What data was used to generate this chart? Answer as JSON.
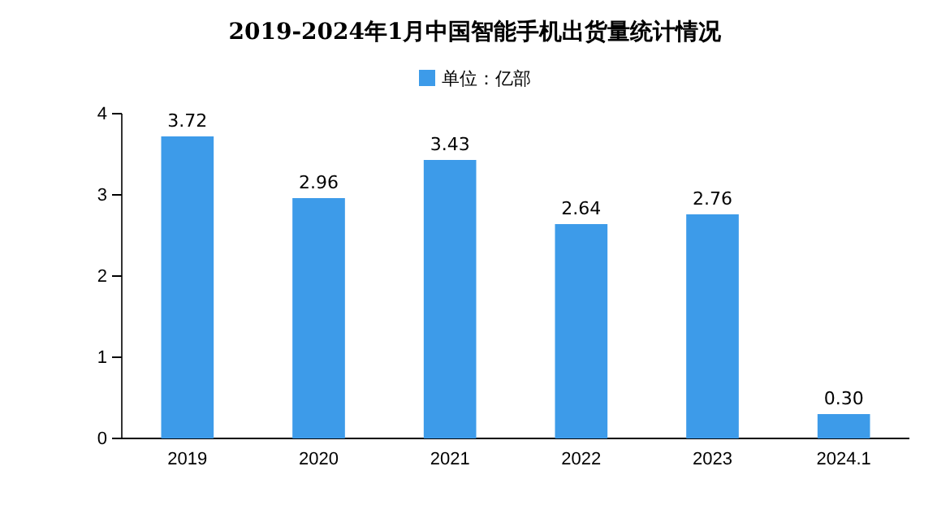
{
  "chart_data": {
    "type": "bar",
    "title": "2019-2024年1月中国智能手机出货量统计情况",
    "categories": [
      "2019",
      "2020",
      "2021",
      "2022",
      "2023",
      "2024.1"
    ],
    "series": [
      {
        "name": "单位：亿部",
        "color": "#3d9be9",
        "values": [
          3.72,
          2.96,
          3.43,
          2.64,
          2.76,
          0.3
        ],
        "value_labels": [
          "3.72",
          "2.96",
          "3.43",
          "2.64",
          "2.76",
          "0.30"
        ]
      }
    ],
    "ylim": [
      0,
      4
    ],
    "yticks": [
      0,
      1,
      2,
      3,
      4
    ],
    "legend": "top",
    "grid": false
  }
}
